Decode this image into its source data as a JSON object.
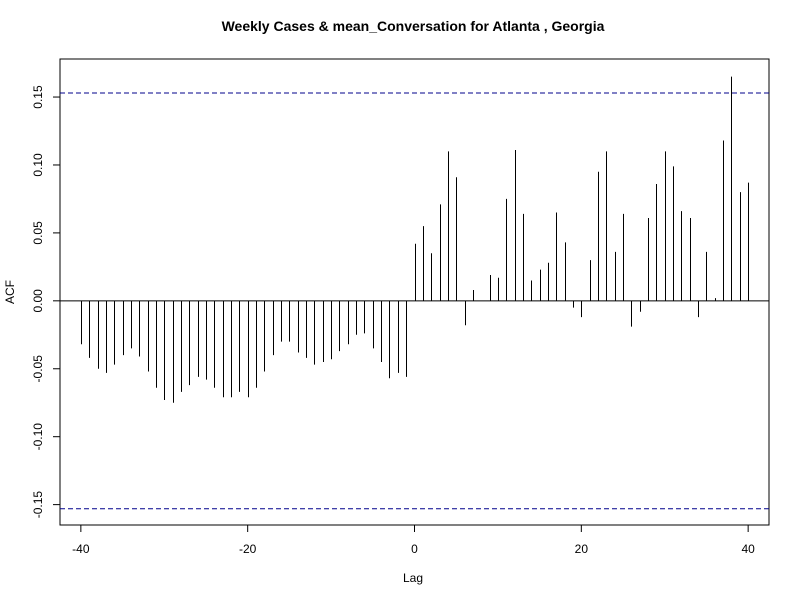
{
  "chart_data": {
    "type": "bar",
    "title": "Weekly Cases & mean_Conversation for Atlanta , Georgia",
    "xlabel": "Lag",
    "ylabel": "ACF",
    "xlim": [
      -42.5,
      42.5
    ],
    "ylim": [
      -0.165,
      0.178
    ],
    "x_ticks": [
      -40,
      -20,
      0,
      20,
      40
    ],
    "y_ticks": [
      -0.15,
      -0.1,
      -0.05,
      0.0,
      0.05,
      0.1,
      0.15
    ],
    "x_tick_labels": [
      "-40",
      "-20",
      "0",
      "20",
      "40"
    ],
    "y_tick_labels": [
      "-0.15",
      "-0.10",
      "-0.05",
      "0.00",
      "0.05",
      "0.10",
      "0.15"
    ],
    "confidence_band": 0.153,
    "colors": {
      "bars": "#000000",
      "band": "#00008b",
      "zero_line": "#000000"
    },
    "lags": [
      -40,
      -39,
      -38,
      -37,
      -36,
      -35,
      -34,
      -33,
      -32,
      -31,
      -30,
      -29,
      -28,
      -27,
      -26,
      -25,
      -24,
      -23,
      -22,
      -21,
      -20,
      -19,
      -18,
      -17,
      -16,
      -15,
      -14,
      -13,
      -12,
      -11,
      -10,
      -9,
      -8,
      -7,
      -6,
      -5,
      -4,
      -3,
      -2,
      -1,
      0,
      1,
      2,
      3,
      4,
      5,
      6,
      7,
      8,
      9,
      10,
      11,
      12,
      13,
      14,
      15,
      16,
      17,
      18,
      19,
      20,
      21,
      22,
      23,
      24,
      25,
      26,
      27,
      28,
      29,
      30,
      31,
      32,
      33,
      34,
      35,
      36,
      37,
      38,
      39,
      40
    ],
    "values": [
      -0.032,
      -0.042,
      -0.05,
      -0.053,
      -0.047,
      -0.04,
      -0.035,
      -0.041,
      -0.052,
      -0.064,
      -0.073,
      -0.075,
      -0.067,
      -0.062,
      -0.056,
      -0.058,
      -0.064,
      -0.071,
      -0.071,
      -0.067,
      -0.071,
      -0.064,
      -0.052,
      -0.04,
      -0.03,
      -0.03,
      -0.038,
      -0.042,
      -0.047,
      -0.045,
      -0.043,
      -0.037,
      -0.032,
      -0.025,
      -0.024,
      -0.035,
      -0.045,
      -0.057,
      -0.053,
      -0.056,
      0.042,
      0.055,
      0.035,
      0.071,
      0.11,
      0.091,
      -0.018,
      0.008,
      0.0,
      0.019,
      0.017,
      0.075,
      0.111,
      0.064,
      0.015,
      0.023,
      0.028,
      0.065,
      0.043,
      -0.005,
      -0.012,
      0.03,
      0.095,
      0.11,
      0.036,
      0.064,
      -0.019,
      -0.008,
      0.061,
      0.086,
      0.11,
      0.099,
      0.066,
      0.061,
      -0.012,
      0.036,
      0.002,
      0.118,
      0.165,
      0.08,
      0.087
    ]
  }
}
